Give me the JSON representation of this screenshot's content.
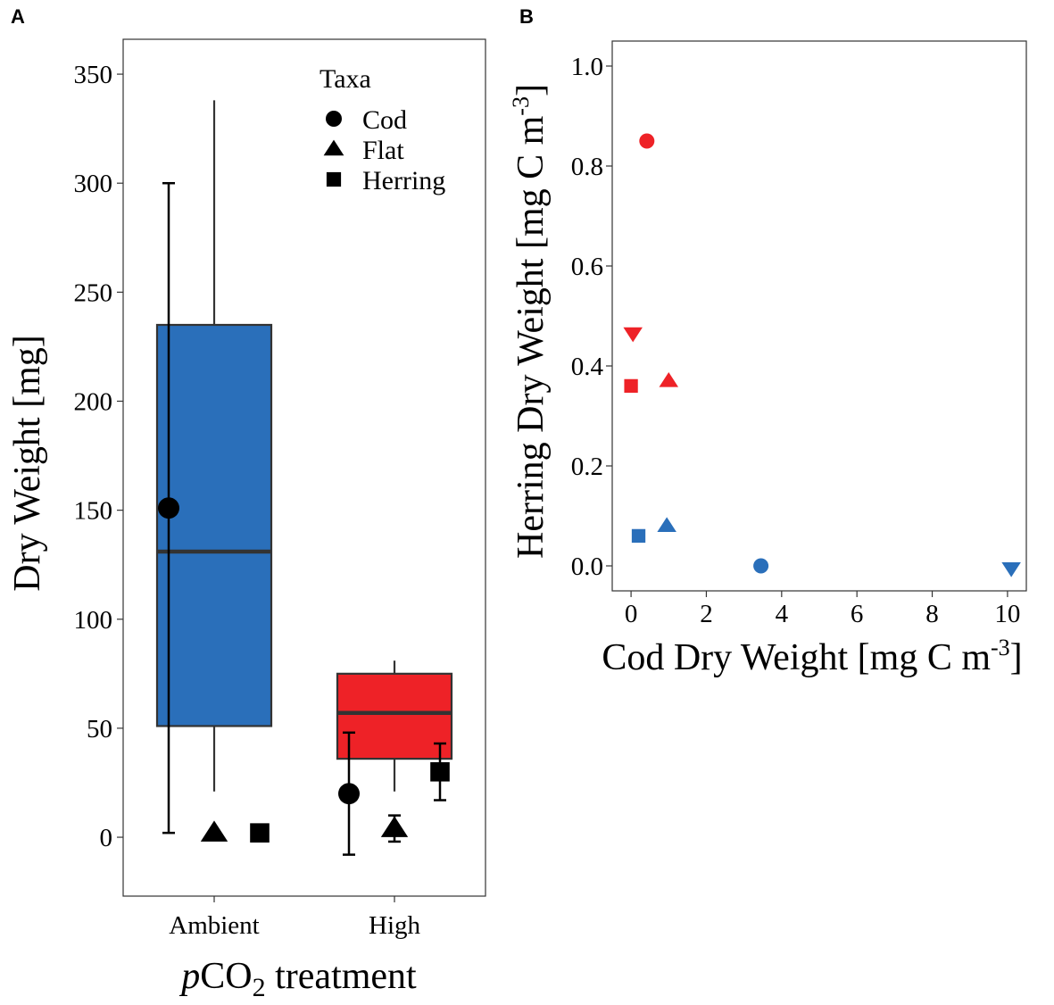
{
  "panels": {
    "a_label": "A",
    "b_label": "B"
  },
  "chart_data": [
    {
      "type": "box",
      "ylabel": "Dry Weight [mg]",
      "xlabel_italic": "p",
      "xlabel_main": "CO",
      "xlabel_sub": "2",
      "xlabel_tail": " treatment",
      "ylim": [
        -27,
        366
      ],
      "yticks": [
        0,
        50,
        100,
        150,
        200,
        250,
        300,
        350
      ],
      "categories": [
        "Ambient",
        "High"
      ],
      "boxes": [
        {
          "name": "Ambient",
          "color": "#2a6fba",
          "whisker_low": 21,
          "q1": 51,
          "median": 131,
          "q3": 235,
          "whisker_high": 338
        },
        {
          "name": "High",
          "color": "#ee2227",
          "whisker_low": 21,
          "q1": 36,
          "median": 57,
          "q3": 75,
          "whisker_high": 81
        }
      ],
      "points": [
        {
          "category": "Ambient",
          "taxa": "Cod",
          "offset": -0.5,
          "mean": 151,
          "err_low": 2,
          "err_high": 300
        },
        {
          "category": "Ambient",
          "taxa": "Flat",
          "offset": 0,
          "mean": 2
        },
        {
          "category": "Ambient",
          "taxa": "Herring",
          "offset": 0.5,
          "mean": 2
        },
        {
          "category": "High",
          "taxa": "Cod",
          "offset": -0.5,
          "mean": 20,
          "err_low": -8,
          "err_high": 48
        },
        {
          "category": "High",
          "taxa": "Flat",
          "offset": 0,
          "mean": 4,
          "err_low": -2,
          "err_high": 10
        },
        {
          "category": "High",
          "taxa": "Herring",
          "offset": 0.5,
          "mean": 30,
          "err_low": 17,
          "err_high": 43
        }
      ],
      "legend": {
        "title": "Taxa",
        "entries": [
          {
            "label": "Cod",
            "shape": "circle"
          },
          {
            "label": "Flat",
            "shape": "triangle-up"
          },
          {
            "label": "Herring",
            "shape": "square"
          }
        ]
      }
    },
    {
      "type": "scatter",
      "xlabel": "Cod Dry Weight [mg C m",
      "xlabel_sup": "-3",
      "xlabel_tail": "]",
      "ylabel": "Herring Dry Weight [mg C m",
      "ylabel_sup": "-3",
      "ylabel_tail": "]",
      "xlim": [
        -0.5,
        10.5
      ],
      "ylim": [
        -0.05,
        1.05
      ],
      "xticks": [
        0,
        2,
        4,
        6,
        8,
        10
      ],
      "yticks": [
        "0.0",
        "0.2",
        "0.4",
        "0.6",
        "0.8",
        "1.0"
      ],
      "points": [
        {
          "x": 0.42,
          "y": 0.85,
          "shape": "circle",
          "color": "#ee2227"
        },
        {
          "x": 0.05,
          "y": 0.465,
          "shape": "triangle-down",
          "color": "#ee2227"
        },
        {
          "x": 1.0,
          "y": 0.37,
          "shape": "triangle-up",
          "color": "#ee2227"
        },
        {
          "x": 0.0,
          "y": 0.36,
          "shape": "square",
          "color": "#ee2227"
        },
        {
          "x": 0.95,
          "y": 0.08,
          "shape": "triangle-up",
          "color": "#2a6fba"
        },
        {
          "x": 0.2,
          "y": 0.06,
          "shape": "square",
          "color": "#2a6fba"
        },
        {
          "x": 3.45,
          "y": 0.0,
          "shape": "circle",
          "color": "#2a6fba"
        },
        {
          "x": 10.1,
          "y": -0.005,
          "shape": "triangle-down",
          "color": "#2a6fba"
        }
      ]
    }
  ]
}
